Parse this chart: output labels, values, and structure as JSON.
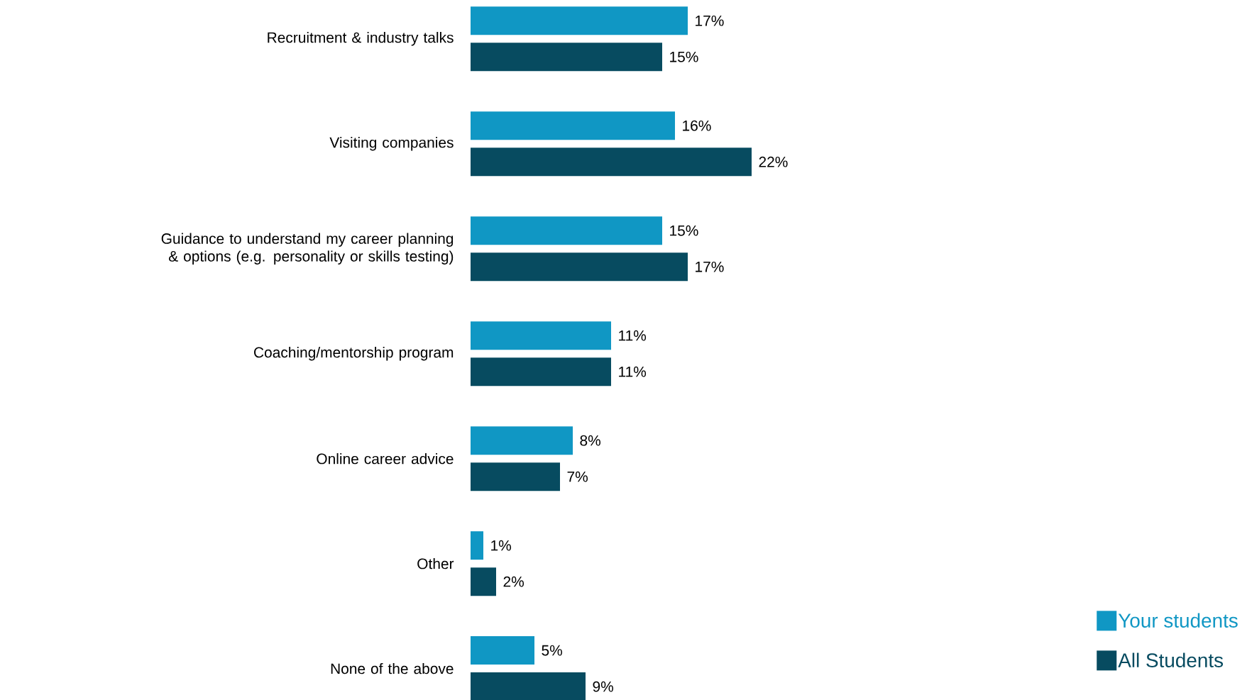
{
  "chart_data": {
    "type": "bar",
    "orientation": "horizontal",
    "legend": "bottom right",
    "categories": [
      "Recruitment & industry talks",
      "Visiting companies",
      "Guidance to understand my career planning & options (e.g. personality or skills testing)",
      "Coaching/mentorship program",
      "Online career advice",
      "Other",
      "None of the above"
    ],
    "series": [
      {
        "name": "Your students",
        "color": "#1097c4",
        "values": [
          17,
          16,
          15,
          11,
          8,
          1,
          5
        ],
        "value_labels": [
          "17%",
          "16%",
          "15%",
          "11%",
          "8%",
          "1%",
          "5%"
        ]
      },
      {
        "name": "All Students",
        "color": "#074b60",
        "values": [
          15,
          22,
          17,
          11,
          7,
          2,
          9
        ],
        "value_labels": [
          "15%",
          "22%",
          "17%",
          "11%",
          "7%",
          "2%",
          "9%"
        ]
      }
    ]
  }
}
